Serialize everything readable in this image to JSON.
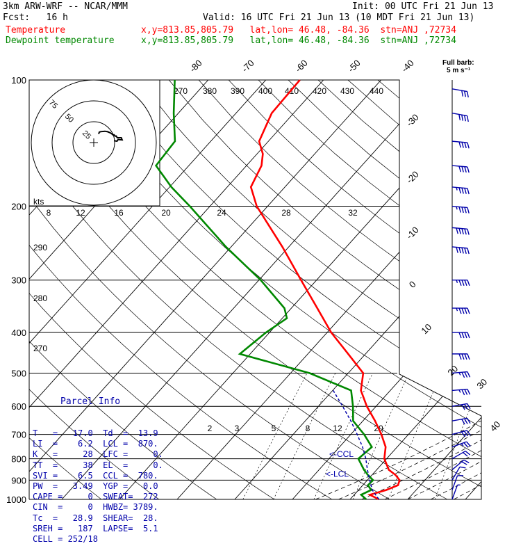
{
  "header": {
    "model": "3km ARW-WRF -- NCAR/MMM",
    "init": "Init: 00 UTC Fri 21 Jun 13",
    "fcst": "Fcst:   16 h",
    "valid": "Valid: 16 UTC Fri 21 Jun 13 (10 MDT Fri 21 Jun 13)",
    "temp_label": "Temperature",
    "dew_label": "Dewpoint temperature",
    "temp_loc": "x,y=813.85,805.79   lat,lon= 46.48, -84.36  stn=ANJ ,72734",
    "dew_loc": "x,y=813.85,805.79   lat,lon= 46.48, -84.36  stn=ANJ ,72734"
  },
  "barb_key": {
    "line1": "Full barb:",
    "line2": "5 m s⁻¹"
  },
  "colors": {
    "temperature": "#ff0000",
    "dewpoint": "#008800",
    "parcel": "#0000aa"
  },
  "chart_data": {
    "type": "line",
    "xlabel": "",
    "ylabel": "",
    "pressure_ticks": [
      "100",
      "200",
      "300",
      "400",
      "500",
      "600",
      "700",
      "800",
      "900",
      "1000"
    ],
    "isotherm_labels": [
      "-80",
      "-70",
      "-60",
      "-50",
      "-40",
      "-30",
      "-20",
      "-10",
      "0",
      "10",
      "20",
      "30",
      "40"
    ],
    "theta_labels": [
      "270",
      "380",
      "390",
      "400",
      "410",
      "420",
      "430",
      "440"
    ],
    "theta_side_labels": [
      "290",
      "280",
      "270"
    ],
    "mixing_ratio_labels": [
      "2",
      "3",
      "5",
      "8",
      "12",
      "20"
    ],
    "hodograph": {
      "units": "kts",
      "ring_labels": [
        "25",
        "50",
        "75"
      ]
    },
    "hodo_speed_labels": [
      "8",
      "12",
      "16",
      "20",
      "24",
      "28",
      "32"
    ],
    "series": [
      {
        "name": "Temperature",
        "points": [
          [
            1000,
            15
          ],
          [
            975,
            12.7
          ],
          [
            950,
            14.8
          ],
          [
            925,
            16.1
          ],
          [
            900,
            15.6
          ],
          [
            875,
            14.1
          ],
          [
            850,
            12.1
          ],
          [
            800,
            9.6
          ],
          [
            750,
            8
          ],
          [
            700,
            5.3
          ],
          [
            650,
            2.1
          ],
          [
            600,
            -1.6
          ],
          [
            550,
            -5.1
          ],
          [
            500,
            -7.4
          ],
          [
            450,
            -13
          ],
          [
            400,
            -19.3
          ],
          [
            350,
            -25.5
          ],
          [
            300,
            -32.7
          ],
          [
            250,
            -41.1
          ],
          [
            200,
            -51.9
          ],
          [
            180,
            -55.9
          ],
          [
            160,
            -57.4
          ],
          [
            150,
            -59
          ],
          [
            140,
            -61.6
          ],
          [
            120,
            -63.8
          ],
          [
            100,
            -64.1
          ]
        ]
      },
      {
        "name": "Dewpoint temperature",
        "points": [
          [
            1000,
            12.8
          ],
          [
            975,
            11.2
          ],
          [
            950,
            12.2
          ],
          [
            925,
            10.9
          ],
          [
            900,
            11
          ],
          [
            875,
            9.3
          ],
          [
            850,
            7.8
          ],
          [
            800,
            5.1
          ],
          [
            750,
            5.6
          ],
          [
            700,
            2.3
          ],
          [
            650,
            -1.7
          ],
          [
            600,
            -4
          ],
          [
            550,
            -6.8
          ],
          [
            500,
            -16.7
          ],
          [
            450,
            -31.8
          ],
          [
            400,
            -30.6
          ],
          [
            370,
            -29.2
          ],
          [
            350,
            -31.2
          ],
          [
            300,
            -39.7
          ],
          [
            250,
            -50.9
          ],
          [
            200,
            -63.5
          ],
          [
            180,
            -69.7
          ],
          [
            160,
            -75.7
          ],
          [
            140,
            -76.2
          ],
          [
            120,
            -80.8
          ],
          [
            100,
            -85.8
          ]
        ]
      },
      {
        "name": "Parcel lifted",
        "points": [
          [
            1000,
            15
          ],
          [
            950,
            12.4
          ],
          [
            900,
            10.4
          ],
          [
            850,
            8.4
          ],
          [
            800,
            6.4
          ],
          [
            750,
            4
          ],
          [
            700,
            1.1
          ],
          [
            650,
            -2.1
          ],
          [
            600,
            -5.8
          ],
          [
            550,
            -9.9
          ]
        ]
      }
    ],
    "annotations": [
      "<-CCL",
      "<-LCL"
    ],
    "wind_barbs": [
      {
        "p": 1000,
        "dir": 200,
        "spd": 4
      },
      {
        "p": 950,
        "dir": 200,
        "spd": 6
      },
      {
        "p": 900,
        "dir": 210,
        "spd": 7
      },
      {
        "p": 850,
        "dir": 230,
        "spd": 10
      },
      {
        "p": 800,
        "dir": 240,
        "spd": 12
      },
      {
        "p": 750,
        "dir": 250,
        "spd": 14
      },
      {
        "p": 700,
        "dir": 255,
        "spd": 15
      },
      {
        "p": 650,
        "dir": 260,
        "spd": 16
      },
      {
        "p": 600,
        "dir": 260,
        "spd": 17
      },
      {
        "p": 550,
        "dir": 265,
        "spd": 18
      },
      {
        "p": 500,
        "dir": 265,
        "spd": 19
      },
      {
        "p": 450,
        "dir": 270,
        "spd": 20
      },
      {
        "p": 400,
        "dir": 270,
        "spd": 21
      },
      {
        "p": 350,
        "dir": 270,
        "spd": 23
      },
      {
        "p": 300,
        "dir": 270,
        "spd": 24
      },
      {
        "p": 250,
        "dir": 275,
        "spd": 25
      },
      {
        "p": 225,
        "dir": 275,
        "spd": 25
      },
      {
        "p": 200,
        "dir": 275,
        "spd": 24
      },
      {
        "p": 180,
        "dir": 275,
        "spd": 23
      },
      {
        "p": 160,
        "dir": 275,
        "spd": 22
      },
      {
        "p": 140,
        "dir": 275,
        "spd": 21
      },
      {
        "p": 120,
        "dir": 280,
        "spd": 20
      },
      {
        "p": 105,
        "dir": 280,
        "spd": 17
      }
    ]
  },
  "parcel_info": {
    "title": "Parcel Info",
    "rows": [
      "T   =   17.0  Td  =  13.9",
      "LI  =    6.2  LCL =  870.",
      "K   =     28  LFC =     0.",
      "TT  =     38  EL  =     0.",
      "SVI =    6.5  CCL =  780.",
      "PW  =   3.49  YGP =   0.0",
      "CAPE =     0  SWEAT=  272",
      "CIN  =     0  HWBZ= 3789.",
      "Tc  =   28.9  SHEAR=  28.",
      "SREH =   187  LAPSE=  5.1",
      "CELL = 252/18"
    ]
  }
}
